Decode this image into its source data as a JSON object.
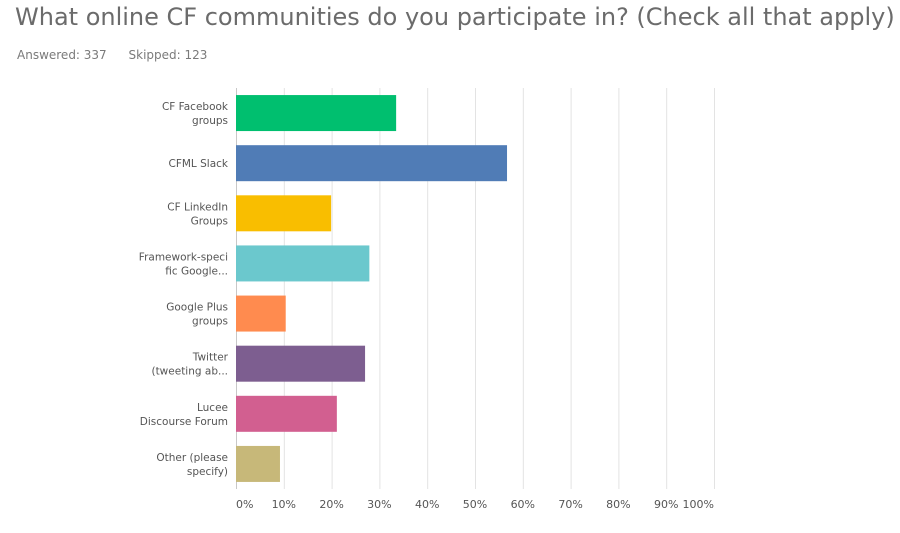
{
  "title": "What online CF communities do you participate in? (Check all that apply)",
  "stats": {
    "answered_label": "Answered: 337",
    "skipped_label": "Skipped: 123"
  },
  "chart_data": {
    "type": "bar",
    "orientation": "horizontal",
    "categories": [
      [
        "CF Facebook",
        "groups"
      ],
      [
        "CFML Slack"
      ],
      [
        "CF LinkedIn",
        "Groups"
      ],
      [
        "Framework-speci",
        "fic Google..."
      ],
      [
        "Google Plus",
        "groups"
      ],
      [
        "Twitter",
        "(tweeting ab..."
      ],
      [
        "Lucee",
        "Discourse Forum"
      ],
      [
        "Other (please",
        "specify)"
      ]
    ],
    "values": [
      33.5,
      56.7,
      19.9,
      27.9,
      10.4,
      27.0,
      21.1,
      9.2
    ],
    "colors": [
      "#00bf6f",
      "#507cb6",
      "#f9be00",
      "#6bc8cd",
      "#ff8b4f",
      "#7d5e90",
      "#d25f90",
      "#c7b879"
    ],
    "xlim": [
      0,
      100
    ],
    "x_ticks": [
      0,
      10,
      20,
      30,
      40,
      50,
      60,
      70,
      80,
      90,
      100
    ],
    "x_tick_labels": [
      "0%",
      "10%",
      "20%",
      "30%",
      "40%",
      "50%",
      "60%",
      "70%",
      "80%",
      "90%",
      "100%"
    ],
    "grid": true,
    "legend": false
  }
}
